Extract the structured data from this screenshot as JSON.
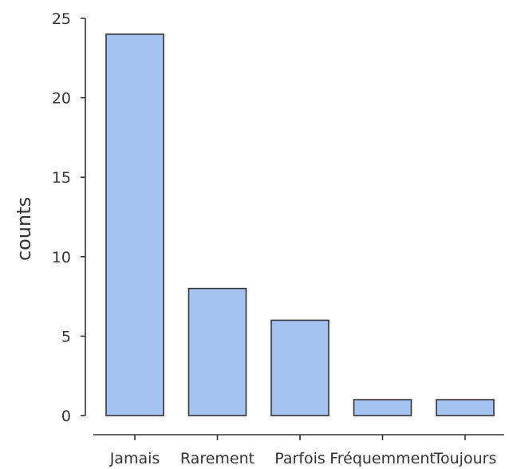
{
  "chart_data": {
    "type": "bar",
    "categories": [
      "Jamais",
      "Rarement",
      "Parfois",
      "Fréquemment",
      "Toujours"
    ],
    "values": [
      24,
      8,
      6,
      1,
      1
    ],
    "title": "",
    "xlabel": "",
    "ylabel": "counts",
    "ylim": [
      0,
      25
    ],
    "yticks": [
      0,
      5,
      10,
      15,
      20,
      25
    ],
    "grid": false,
    "legend": "none",
    "bar_color": "#a4c3f0",
    "edge_color": "#333333"
  }
}
